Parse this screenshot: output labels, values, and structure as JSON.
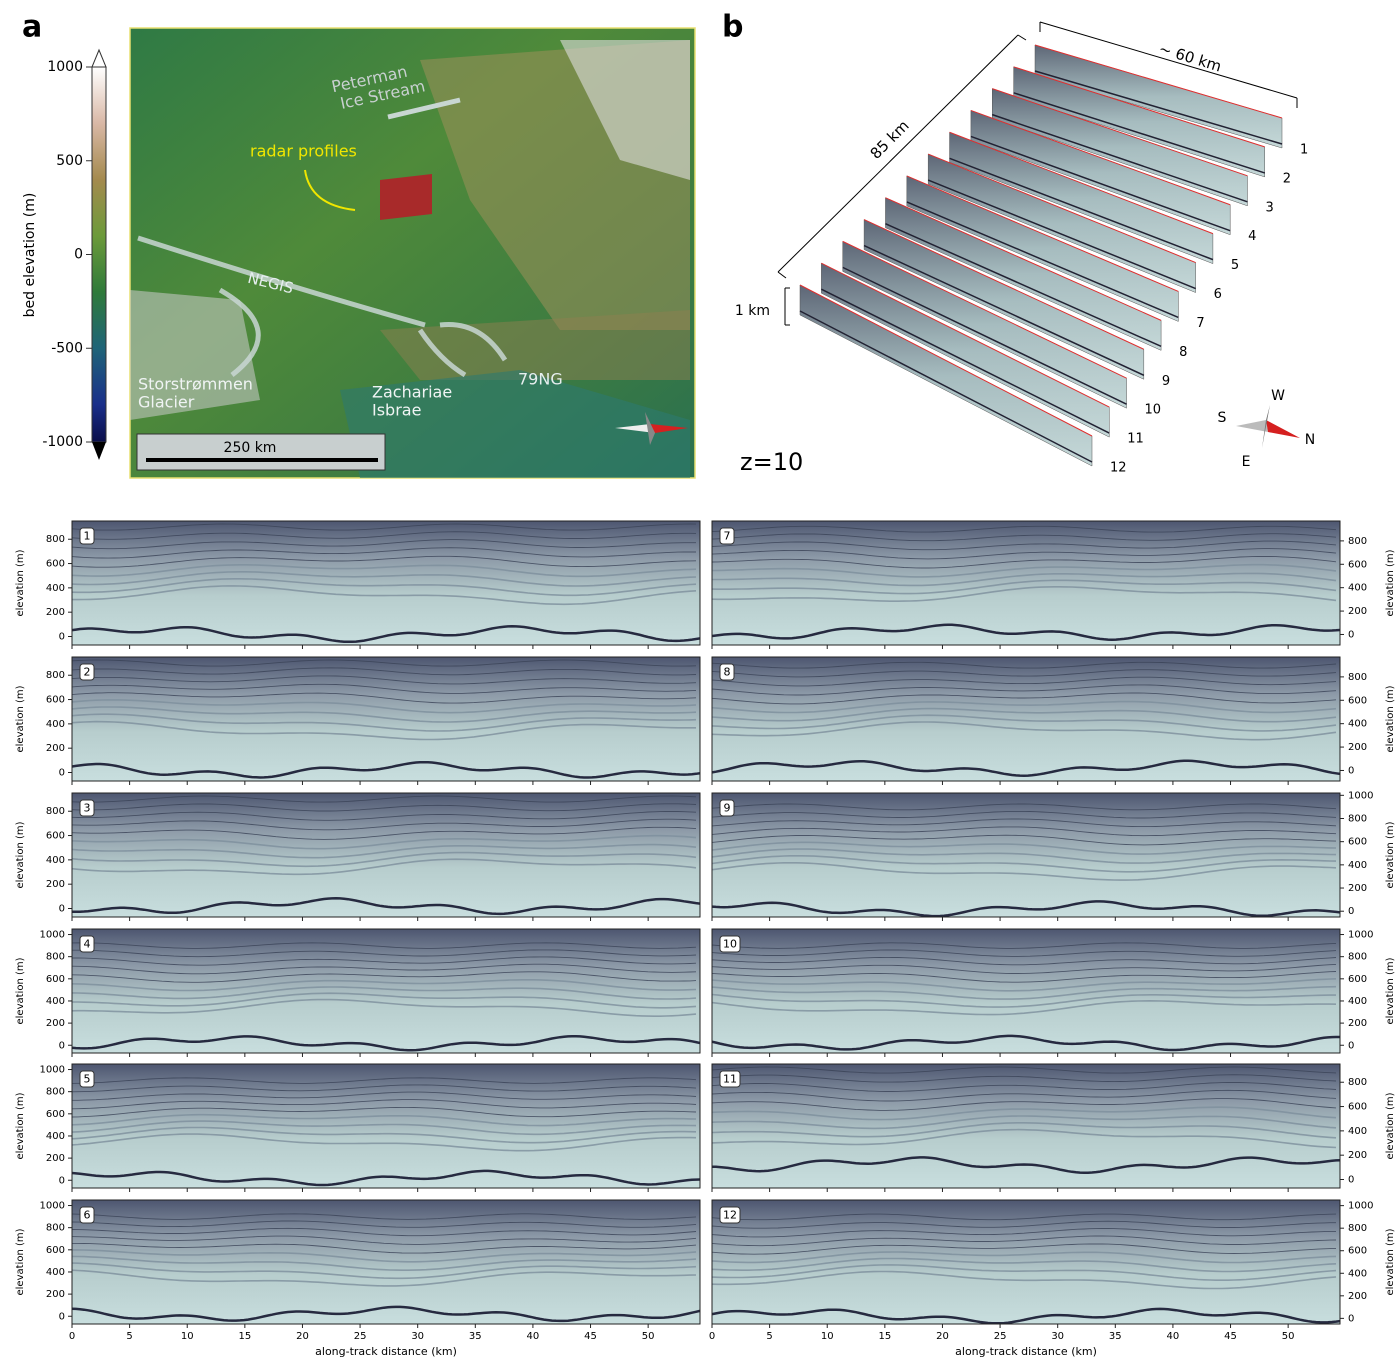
{
  "panel_a": {
    "label": "a",
    "colorbar": {
      "label": "bed elevation (m)",
      "lim": [
        -1000,
        1000
      ],
      "ticks": [
        1000,
        500,
        0,
        -500,
        -1000
      ]
    },
    "labels": {
      "peterman": [
        "Peterman",
        "Ice Stream"
      ],
      "radar": "radar profiles",
      "negis": "NEGIS",
      "storstrommen": [
        "Storstrømmen",
        "Glacier"
      ],
      "zachariae": [
        "Zachariae",
        "Isbrae"
      ],
      "ng79": "79NG"
    },
    "scale": "250 km"
  },
  "panel_b": {
    "label": "b",
    "width": "~ 60 km",
    "length": "85 km",
    "height": "1 km",
    "exaggeration": "z=10",
    "profiles": [
      "1",
      "2",
      "3",
      "4",
      "5",
      "6",
      "7",
      "8",
      "9",
      "10",
      "11",
      "12"
    ],
    "compass": {
      "s": "S",
      "w": "W",
      "n": "N",
      "e": "E"
    }
  },
  "profiles": {
    "ylabel": "elevation (m)",
    "xlabel": "along-track distance (km)",
    "xlim": [
      0,
      54.5
    ],
    "xticks": [
      0,
      5,
      10,
      15,
      20,
      25,
      30,
      35,
      40,
      45,
      50
    ],
    "panels": [
      {
        "label": "1",
        "ylim": [
          -70,
          950
        ],
        "yticks": [
          0,
          200,
          400,
          600,
          800
        ]
      },
      {
        "label": "2",
        "ylim": [
          -70,
          950
        ],
        "yticks": [
          0,
          200,
          400,
          600,
          800
        ]
      },
      {
        "label": "3",
        "ylim": [
          -70,
          950
        ],
        "yticks": [
          0,
          200,
          400,
          600,
          800
        ]
      },
      {
        "label": "4",
        "ylim": [
          -70,
          1050
        ],
        "yticks": [
          0,
          200,
          400,
          600,
          800,
          1000
        ]
      },
      {
        "label": "5",
        "ylim": [
          -70,
          1050
        ],
        "yticks": [
          0,
          200,
          400,
          600,
          800,
          1000
        ]
      },
      {
        "label": "6",
        "ylim": [
          -70,
          1050
        ],
        "yticks": [
          0,
          200,
          400,
          600,
          800,
          1000
        ]
      },
      {
        "label": "7",
        "ylim": [
          -90,
          970
        ],
        "yticks": [
          0,
          200,
          400,
          600,
          800
        ]
      },
      {
        "label": "8",
        "ylim": [
          -90,
          970
        ],
        "yticks": [
          0,
          200,
          400,
          600,
          800
        ]
      },
      {
        "label": "9",
        "ylim": [
          -50,
          1020
        ],
        "yticks": [
          0,
          200,
          400,
          600,
          800,
          1000
        ]
      },
      {
        "label": "10",
        "ylim": [
          -70,
          1050
        ],
        "yticks": [
          0,
          200,
          400,
          600,
          800,
          1000
        ]
      },
      {
        "label": "11",
        "ylim": [
          -70,
          950
        ],
        "yticks": [
          0,
          200,
          400,
          600,
          800
        ]
      },
      {
        "label": "12",
        "ylim": [
          -50,
          1050
        ],
        "yticks": [
          0,
          200,
          400,
          600,
          800,
          1000
        ]
      }
    ]
  }
}
